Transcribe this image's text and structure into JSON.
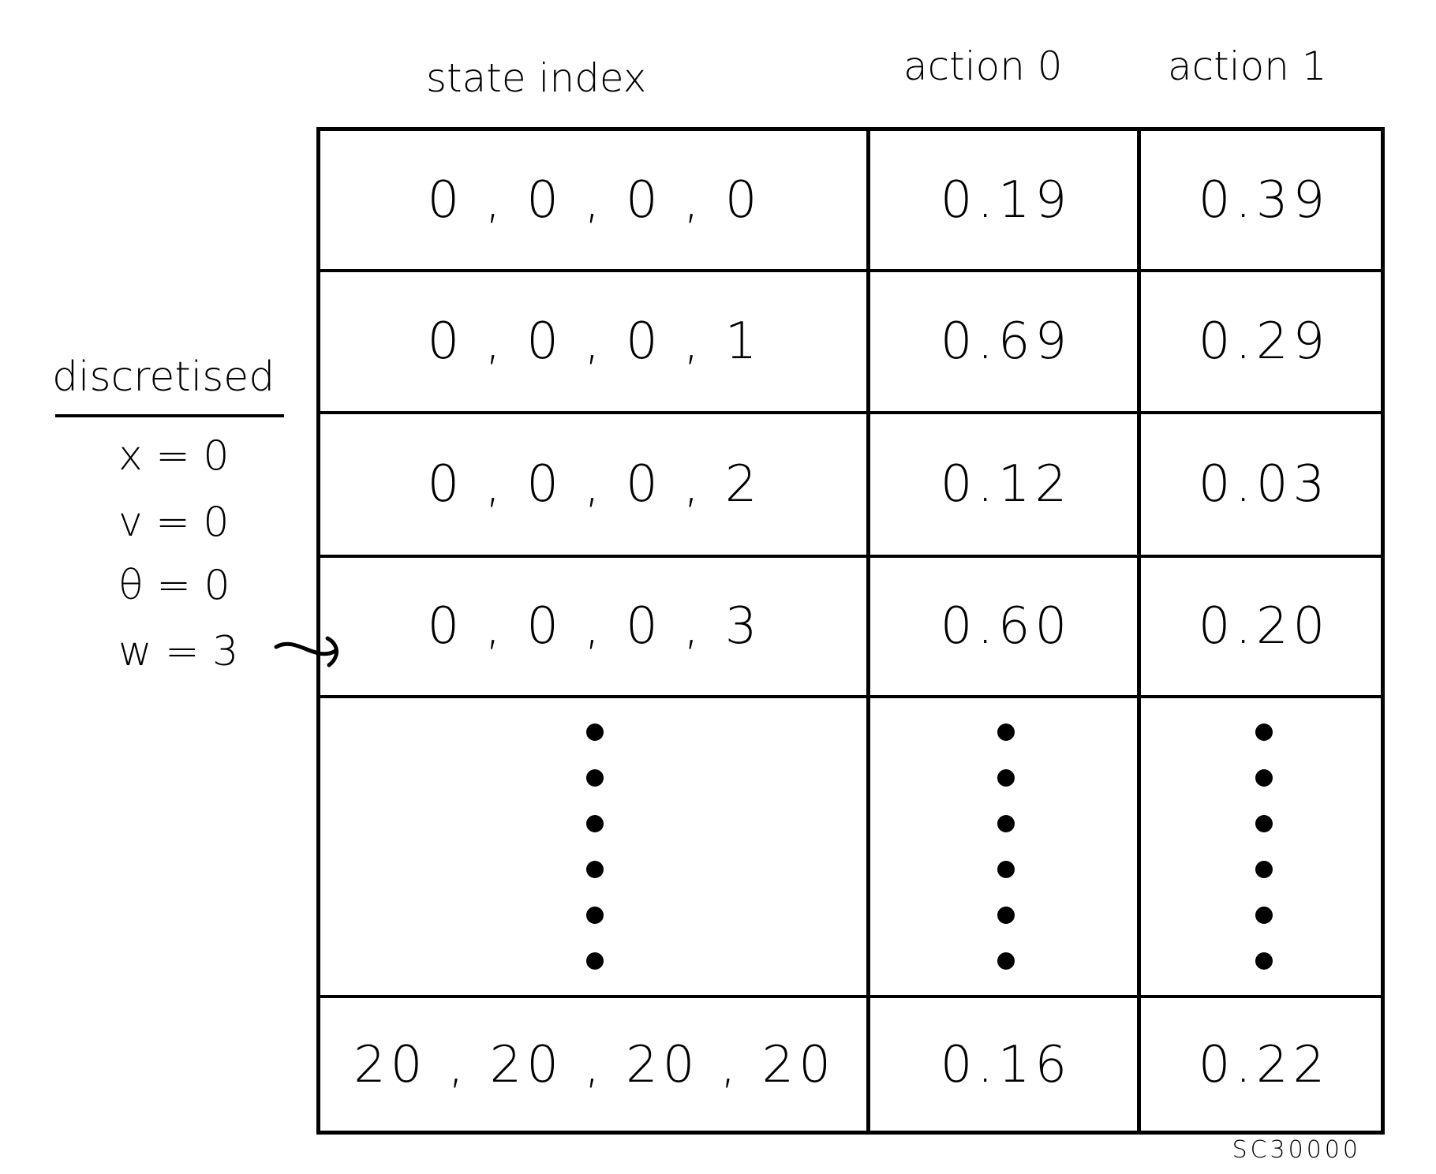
{
  "headers": {
    "state": "state index",
    "action0": "action 0",
    "action1": "action 1"
  },
  "rows": [
    {
      "state": "0 , 0 , 0 , 0",
      "a0": "0.19",
      "a1": "0.39"
    },
    {
      "state": "0 , 0 , 0 , 1",
      "a0": "0.69",
      "a1": "0.29"
    },
    {
      "state": "0 , 0 , 0 , 2",
      "a0": "0.12",
      "a1": "0.03"
    },
    {
      "state": "0 , 0 , 0 , 3",
      "a0": "0.60",
      "a1": "0.20"
    },
    {
      "state": "",
      "a0": "",
      "a1": ""
    },
    {
      "state": "20 , 20 , 20 , 20",
      "a0": "0.16",
      "a1": "0.22"
    }
  ],
  "annotation": {
    "label": "discretised",
    "vars": [
      "x = 0",
      "v = 0",
      "θ = 0",
      "w = 3"
    ]
  },
  "footer_note": "SC30000"
}
